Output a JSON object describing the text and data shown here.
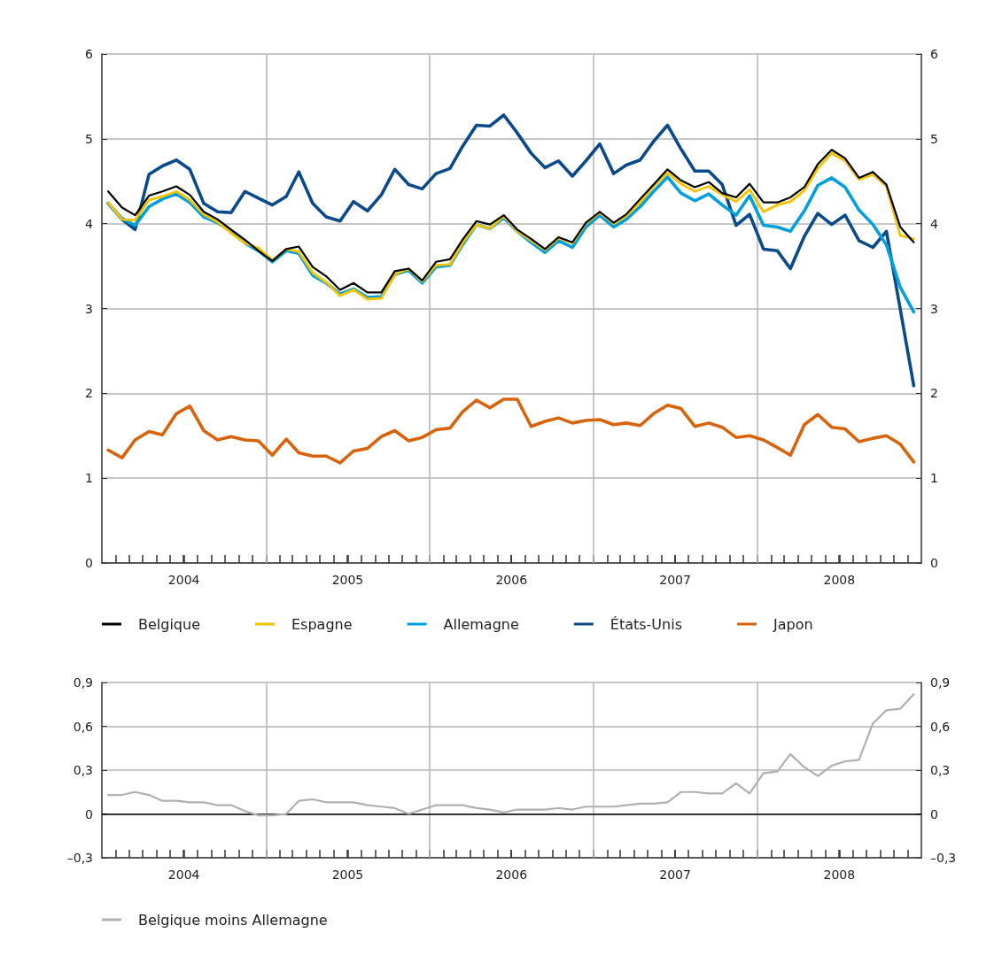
{
  "chart_data": [
    {
      "type": "line",
      "x": [
        "2004-01-15",
        "2004-02-15",
        "2004-03-15",
        "2004-04-15",
        "2004-05-15",
        "2004-06-15",
        "2004-07-15",
        "2004-08-15",
        "2004-09-15",
        "2004-10-15",
        "2004-11-15",
        "2004-12-15",
        "2005-01-15",
        "2005-02-15",
        "2005-03-15",
        "2005-04-15",
        "2005-05-15",
        "2005-06-15",
        "2005-07-15",
        "2005-08-15",
        "2005-09-15",
        "2005-10-15",
        "2005-11-15",
        "2005-12-15",
        "2006-01-15",
        "2006-02-15",
        "2006-03-15",
        "2006-04-15",
        "2006-05-15",
        "2006-06-15",
        "2006-07-15",
        "2006-08-15",
        "2006-09-15",
        "2006-10-15",
        "2006-11-15",
        "2006-12-15",
        "2007-01-15",
        "2007-02-15",
        "2007-03-15",
        "2007-04-15",
        "2007-05-15",
        "2007-06-15",
        "2007-07-15",
        "2007-08-15",
        "2007-09-15",
        "2007-10-15",
        "2007-11-15",
        "2007-12-15",
        "2008-01-15",
        "2008-02-15",
        "2008-03-15",
        "2008-04-15",
        "2008-05-15",
        "2008-06-15",
        "2008-07-15",
        "2008-08-15",
        "2008-09-15",
        "2008-10-15",
        "2008-11-15",
        "2008-12-15"
      ],
      "series": [
        {
          "name": "Belgique",
          "color": "#000000",
          "values": [
            4.38,
            4.19,
            4.1,
            4.33,
            4.38,
            4.44,
            4.34,
            4.14,
            4.05,
            3.93,
            3.81,
            3.68,
            3.56,
            3.7,
            3.73,
            3.49,
            3.38,
            3.22,
            3.3,
            3.19,
            3.19,
            3.44,
            3.47,
            3.33,
            3.55,
            3.58,
            3.81,
            4.03,
            3.99,
            4.1,
            3.93,
            3.82,
            3.7,
            3.84,
            3.78,
            4.01,
            4.14,
            4.01,
            4.11,
            4.29,
            4.46,
            4.64,
            4.51,
            4.43,
            4.49,
            4.36,
            4.31,
            4.47,
            4.25,
            4.25,
            4.31,
            4.43,
            4.7,
            4.87,
            4.77,
            4.54,
            4.61,
            4.46,
            3.96,
            3.78
          ]
        },
        {
          "name": "Espagne",
          "color": "#f5c400",
          "values": [
            4.25,
            4.05,
            4.04,
            4.28,
            4.32,
            4.38,
            4.28,
            4.11,
            4.02,
            3.89,
            3.77,
            3.71,
            3.57,
            3.7,
            3.67,
            3.42,
            3.31,
            3.15,
            3.22,
            3.11,
            3.12,
            3.4,
            3.47,
            3.32,
            3.51,
            3.52,
            3.77,
            3.99,
            3.94,
            4.09,
            3.91,
            3.8,
            3.69,
            3.83,
            3.77,
            4.0,
            4.13,
            4.0,
            4.09,
            4.25,
            4.44,
            4.6,
            4.47,
            4.38,
            4.44,
            4.34,
            4.26,
            4.4,
            4.14,
            4.22,
            4.26,
            4.39,
            4.65,
            4.83,
            4.74,
            4.52,
            4.58,
            4.44,
            3.86,
            3.82
          ]
        },
        {
          "name": "Allemagne",
          "color": "#00a0e0",
          "values": [
            4.24,
            4.06,
            3.98,
            4.2,
            4.29,
            4.35,
            4.25,
            4.08,
            4.01,
            3.91,
            3.77,
            3.68,
            3.55,
            3.68,
            3.65,
            3.39,
            3.3,
            3.17,
            3.23,
            3.13,
            3.14,
            3.4,
            3.45,
            3.3,
            3.49,
            3.51,
            3.75,
            3.99,
            3.94,
            4.07,
            3.91,
            3.78,
            3.66,
            3.8,
            3.72,
            3.96,
            4.1,
            3.96,
            4.05,
            4.2,
            4.38,
            4.55,
            4.36,
            4.27,
            4.35,
            4.22,
            4.1,
            4.33,
            3.98,
            3.96,
            3.91,
            4.15,
            4.45,
            4.54,
            4.43,
            4.16,
            3.99,
            3.75,
            3.25,
            2.96
          ]
        },
        {
          "name": "États-Unis",
          "color": "#0a4a8c",
          "values": [
            4.24,
            4.05,
            3.93,
            4.58,
            4.68,
            4.75,
            4.64,
            4.24,
            4.14,
            4.13,
            4.38,
            4.3,
            4.22,
            4.32,
            4.61,
            4.24,
            4.08,
            4.03,
            4.26,
            4.15,
            4.34,
            4.64,
            4.46,
            4.41,
            4.59,
            4.65,
            4.91,
            5.16,
            5.15,
            5.28,
            5.07,
            4.83,
            4.66,
            4.74,
            4.56,
            4.74,
            4.94,
            4.59,
            4.69,
            4.75,
            4.97,
            5.16,
            4.88,
            4.62,
            4.62,
            4.46,
            3.98,
            4.11,
            3.7,
            3.68,
            3.47,
            3.85,
            4.12,
            3.99,
            4.1,
            3.8,
            3.72,
            3.91,
            2.99,
            2.09
          ]
        },
        {
          "name": "Japon",
          "color": "#d9630a",
          "values": [
            1.33,
            1.24,
            1.45,
            1.55,
            1.51,
            1.76,
            1.85,
            1.56,
            1.45,
            1.49,
            1.45,
            1.44,
            1.27,
            1.46,
            1.3,
            1.26,
            1.26,
            1.18,
            1.32,
            1.35,
            1.49,
            1.56,
            1.44,
            1.48,
            1.57,
            1.59,
            1.78,
            1.92,
            1.83,
            1.93,
            1.93,
            1.61,
            1.67,
            1.71,
            1.65,
            1.68,
            1.69,
            1.63,
            1.65,
            1.62,
            1.76,
            1.86,
            1.82,
            1.61,
            1.65,
            1.6,
            1.48,
            1.5,
            1.45,
            1.36,
            1.27,
            1.63,
            1.75,
            1.6,
            1.58,
            1.43,
            1.47,
            1.5,
            1.4,
            1.19
          ]
        }
      ],
      "xlim": [
        "2004-01",
        "2009-01"
      ],
      "xticks": [
        {
          "value": "2004-02",
          "label": null
        },
        {
          "value": "2004-03",
          "label": null
        },
        {
          "value": "2004-04",
          "label": null
        },
        {
          "value": "2004-05",
          "label": null
        },
        {
          "value": "2004-06",
          "label": null
        },
        {
          "value": "2004-07",
          "label": null
        },
        {
          "value": "2004-08",
          "label": null
        },
        {
          "value": "2004-09",
          "label": null
        },
        {
          "value": "2004-10",
          "label": null
        },
        {
          "value": "2004-11",
          "label": null
        },
        {
          "value": "2004-12",
          "label": null
        },
        {
          "value": "2005-01",
          "label": null
        },
        {
          "value": "2005-02",
          "label": null
        },
        {
          "value": "2005-03",
          "label": null
        },
        {
          "value": "2005-04",
          "label": null
        },
        {
          "value": "2005-05",
          "label": null
        },
        {
          "value": "2005-06",
          "label": null
        },
        {
          "value": "2005-07",
          "label": null
        },
        {
          "value": "2005-08",
          "label": null
        },
        {
          "value": "2005-09",
          "label": null
        },
        {
          "value": "2005-10",
          "label": null
        },
        {
          "value": "2005-11",
          "label": null
        },
        {
          "value": "2005-12",
          "label": null
        },
        {
          "value": "2006-01",
          "label": null
        },
        {
          "value": "2006-02",
          "label": null
        },
        {
          "value": "2006-03",
          "label": null
        },
        {
          "value": "2006-04",
          "label": null
        },
        {
          "value": "2006-05",
          "label": null
        },
        {
          "value": "2006-06",
          "label": null
        },
        {
          "value": "2006-07",
          "label": null
        },
        {
          "value": "2006-08",
          "label": null
        },
        {
          "value": "2006-09",
          "label": null
        },
        {
          "value": "2006-10",
          "label": null
        },
        {
          "value": "2006-11",
          "label": null
        },
        {
          "value": "2006-12",
          "label": null
        },
        {
          "value": "2007-01",
          "label": null
        },
        {
          "value": "2007-02",
          "label": null
        },
        {
          "value": "2007-03",
          "label": null
        },
        {
          "value": "2007-04",
          "label": null
        },
        {
          "value": "2007-05",
          "label": null
        },
        {
          "value": "2007-06",
          "label": null
        },
        {
          "value": "2007-07",
          "label": null
        },
        {
          "value": "2007-08",
          "label": null
        },
        {
          "value": "2007-09",
          "label": null
        },
        {
          "value": "2007-10",
          "label": null
        },
        {
          "value": "2007-11",
          "label": null
        },
        {
          "value": "2007-12",
          "label": null
        },
        {
          "value": "2008-01",
          "label": null
        },
        {
          "value": "2008-02",
          "label": null
        },
        {
          "value": "2008-03",
          "label": null
        },
        {
          "value": "2008-04",
          "label": null
        },
        {
          "value": "2008-05",
          "label": null
        },
        {
          "value": "2008-06",
          "label": null
        },
        {
          "value": "2008-07",
          "label": null
        },
        {
          "value": "2008-08",
          "label": null
        },
        {
          "value": "2008-09",
          "label": null
        },
        {
          "value": "2008-10",
          "label": null
        },
        {
          "value": "2008-11",
          "label": null
        },
        {
          "value": "2008-12",
          "label": null
        },
        {
          "value": "2004-07-02",
          "label": "2004"
        },
        {
          "value": "2005-07-02",
          "label": "2005"
        },
        {
          "value": "2006-07-02",
          "label": "2006"
        },
        {
          "value": "2007-07-02",
          "label": "2007"
        },
        {
          "value": "2008-07-02",
          "label": "2008"
        }
      ],
      "ylim": [
        0,
        6
      ],
      "yticks": [
        0,
        1,
        2,
        3,
        4,
        5,
        6
      ],
      "y2lim": [
        0,
        6
      ],
      "y2ticks": [
        0,
        1,
        2,
        3,
        4,
        5,
        6
      ],
      "grid": true,
      "legend": "bottom"
    },
    {
      "type": "line",
      "x": [
        "2004-01-15",
        "2004-02-15",
        "2004-03-15",
        "2004-04-15",
        "2004-05-15",
        "2004-06-15",
        "2004-07-15",
        "2004-08-15",
        "2004-09-15",
        "2004-10-15",
        "2004-11-15",
        "2004-12-15",
        "2005-01-15",
        "2005-02-15",
        "2005-03-15",
        "2005-04-15",
        "2005-05-15",
        "2005-06-15",
        "2005-07-15",
        "2005-08-15",
        "2005-09-15",
        "2005-10-15",
        "2005-11-15",
        "2005-12-15",
        "2006-01-15",
        "2006-02-15",
        "2006-03-15",
        "2006-04-15",
        "2006-05-15",
        "2006-06-15",
        "2006-07-15",
        "2006-08-15",
        "2006-09-15",
        "2006-10-15",
        "2006-11-15",
        "2006-12-15",
        "2007-01-15",
        "2007-02-15",
        "2007-03-15",
        "2007-04-15",
        "2007-05-15",
        "2007-06-15",
        "2007-07-15",
        "2007-08-15",
        "2007-09-15",
        "2007-10-15",
        "2007-11-15",
        "2007-12-15",
        "2008-01-15",
        "2008-02-15",
        "2008-03-15",
        "2008-04-15",
        "2008-05-15",
        "2008-06-15",
        "2008-07-15",
        "2008-08-15",
        "2008-09-15",
        "2008-10-15",
        "2008-11-15",
        "2008-12-15"
      ],
      "series": [
        {
          "name": "Belgique moins Allemagne",
          "color": "#b0b0b0",
          "values": [
            0.13,
            0.13,
            0.15,
            0.13,
            0.09,
            0.09,
            0.08,
            0.08,
            0.06,
            0.06,
            0.02,
            -0.01,
            -0.01,
            0.0,
            0.09,
            0.1,
            0.08,
            0.08,
            0.08,
            0.06,
            0.05,
            0.04,
            0.0,
            0.03,
            0.06,
            0.06,
            0.06,
            0.04,
            0.03,
            0.01,
            0.03,
            0.03,
            0.03,
            0.04,
            0.03,
            0.05,
            0.05,
            0.05,
            0.06,
            0.07,
            0.07,
            0.08,
            0.15,
            0.15,
            0.14,
            0.14,
            0.21,
            0.14,
            0.28,
            0.29,
            0.41,
            0.32,
            0.26,
            0.33,
            0.36,
            0.37,
            0.62,
            0.71,
            0.72,
            0.82
          ]
        }
      ],
      "xlim": [
        "2004-01",
        "2009-01"
      ],
      "xticks": [
        {
          "value": "2004-02",
          "label": null
        },
        {
          "value": "2004-03",
          "label": null
        },
        {
          "value": "2004-04",
          "label": null
        },
        {
          "value": "2004-05",
          "label": null
        },
        {
          "value": "2004-06",
          "label": null
        },
        {
          "value": "2004-07",
          "label": null
        },
        {
          "value": "2004-08",
          "label": null
        },
        {
          "value": "2004-09",
          "label": null
        },
        {
          "value": "2004-10",
          "label": null
        },
        {
          "value": "2004-11",
          "label": null
        },
        {
          "value": "2004-12",
          "label": null
        },
        {
          "value": "2005-01",
          "label": null
        },
        {
          "value": "2005-02",
          "label": null
        },
        {
          "value": "2005-03",
          "label": null
        },
        {
          "value": "2005-04",
          "label": null
        },
        {
          "value": "2005-05",
          "label": null
        },
        {
          "value": "2005-06",
          "label": null
        },
        {
          "value": "2005-07",
          "label": null
        },
        {
          "value": "2005-08",
          "label": null
        },
        {
          "value": "2005-09",
          "label": null
        },
        {
          "value": "2005-10",
          "label": null
        },
        {
          "value": "2005-11",
          "label": null
        },
        {
          "value": "2005-12",
          "label": null
        },
        {
          "value": "2006-01",
          "label": null
        },
        {
          "value": "2006-02",
          "label": null
        },
        {
          "value": "2006-03",
          "label": null
        },
        {
          "value": "2006-04",
          "label": null
        },
        {
          "value": "2006-05",
          "label": null
        },
        {
          "value": "2006-06",
          "label": null
        },
        {
          "value": "2006-07",
          "label": null
        },
        {
          "value": "2006-08",
          "label": null
        },
        {
          "value": "2006-09",
          "label": null
        },
        {
          "value": "2006-10",
          "label": null
        },
        {
          "value": "2006-11",
          "label": null
        },
        {
          "value": "2006-12",
          "label": null
        },
        {
          "value": "2007-01",
          "label": null
        },
        {
          "value": "2007-02",
          "label": null
        },
        {
          "value": "2007-03",
          "label": null
        },
        {
          "value": "2007-04",
          "label": null
        },
        {
          "value": "2007-05",
          "label": null
        },
        {
          "value": "2007-06",
          "label": null
        },
        {
          "value": "2007-07",
          "label": null
        },
        {
          "value": "2007-08",
          "label": null
        },
        {
          "value": "2007-09",
          "label": null
        },
        {
          "value": "2007-10",
          "label": null
        },
        {
          "value": "2007-11",
          "label": null
        },
        {
          "value": "2007-12",
          "label": null
        },
        {
          "value": "2008-01",
          "label": null
        },
        {
          "value": "2008-02",
          "label": null
        },
        {
          "value": "2008-03",
          "label": null
        },
        {
          "value": "2008-04",
          "label": null
        },
        {
          "value": "2008-05",
          "label": null
        },
        {
          "value": "2008-06",
          "label": null
        },
        {
          "value": "2008-07",
          "label": null
        },
        {
          "value": "2008-08",
          "label": null
        },
        {
          "value": "2008-09",
          "label": null
        },
        {
          "value": "2008-10",
          "label": null
        },
        {
          "value": "2008-11",
          "label": null
        },
        {
          "value": "2008-12",
          "label": null
        },
        {
          "value": "2004-07-02",
          "label": "2004"
        },
        {
          "value": "2005-07-02",
          "label": "2005"
        },
        {
          "value": "2006-07-02",
          "label": "2006"
        },
        {
          "value": "2007-07-02",
          "label": "2007"
        },
        {
          "value": "2008-07-02",
          "label": "2008"
        }
      ],
      "ylim": [
        -0.3,
        0.9
      ],
      "yticks": [
        {
          "value": -0.3,
          "label": "–0,3"
        },
        {
          "value": 0,
          "label": "0"
        },
        {
          "value": 0.3,
          "label": "0,3"
        },
        {
          "value": 0.6,
          "label": "0,6"
        },
        {
          "value": 0.9,
          "label": "0,9"
        }
      ],
      "y2lim": [
        -0.3,
        0.9
      ],
      "y2ticks": [
        {
          "value": -0.3,
          "label": "–0,3"
        },
        {
          "value": 0,
          "label": "0"
        },
        {
          "value": 0.3,
          "label": "0,3"
        },
        {
          "value": 0.6,
          "label": "0,6"
        },
        {
          "value": 0.9,
          "label": "0,9"
        }
      ],
      "ref_lines": [
        {
          "axis": "y",
          "value": 0,
          "color": "#000000"
        }
      ],
      "grid": true,
      "legend": "bottom"
    }
  ]
}
